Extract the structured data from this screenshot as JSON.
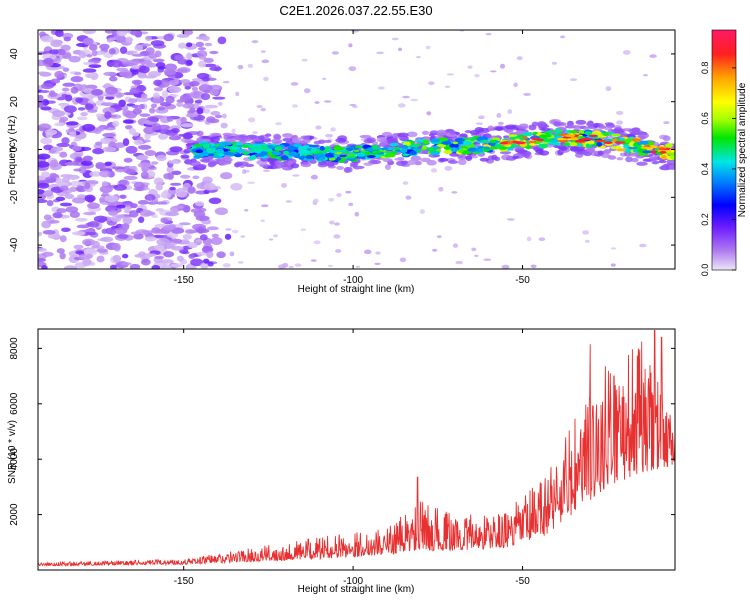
{
  "title": "C2E1.2026.037.22.55.E30",
  "chart_data": [
    {
      "type": "heatmap",
      "xlabel": "Height of straight line (km)",
      "ylabel": "Frequency (Hz)",
      "xlim": [
        -193,
        -5
      ],
      "ylim": [
        -50,
        50
      ],
      "xticks": [
        -150,
        -100,
        -50
      ],
      "yticks": [
        -40,
        -20,
        0,
        20,
        40
      ],
      "colorbar": {
        "label": "Normalized spectral amplitude",
        "range": [
          0,
          0.95
        ],
        "ticks": [
          0.0,
          0.2,
          0.4,
          0.6,
          0.8
        ]
      },
      "ridge": {
        "description_points": [
          {
            "x": -148,
            "y": 0
          },
          {
            "x": -120,
            "y": -1
          },
          {
            "x": -100,
            "y": -2
          },
          {
            "x": -80,
            "y": 1
          },
          {
            "x": -60,
            "y": 2
          },
          {
            "x": -40,
            "y": 5
          },
          {
            "x": -25,
            "y": 4
          },
          {
            "x": -8,
            "y": -1
          }
        ]
      }
    },
    {
      "type": "line",
      "xlabel": "Height of straight line (km)",
      "ylabel": "SNR (10 * v/v)",
      "xlim": [
        -193,
        -5
      ],
      "ylim": [
        0,
        8700
      ],
      "xticks": [
        -150,
        -100,
        -50
      ],
      "yticks": [
        2000,
        4000,
        6000,
        8000
      ],
      "series_color": "#e83030",
      "envelope": [
        {
          "x": -193,
          "base": 150,
          "amp": 120
        },
        {
          "x": -150,
          "base": 200,
          "amp": 200
        },
        {
          "x": -130,
          "base": 300,
          "amp": 500
        },
        {
          "x": -110,
          "base": 400,
          "amp": 800
        },
        {
          "x": -90,
          "base": 550,
          "amp": 1000
        },
        {
          "x": -80,
          "base": 700,
          "amp": 1800
        },
        {
          "x": -70,
          "base": 700,
          "amp": 1300
        },
        {
          "x": -55,
          "base": 800,
          "amp": 1300
        },
        {
          "x": -45,
          "base": 1100,
          "amp": 2200
        },
        {
          "x": -35,
          "base": 2000,
          "amp": 3500
        },
        {
          "x": -25,
          "base": 3000,
          "amp": 4500
        },
        {
          "x": -15,
          "base": 3500,
          "amp": 4800
        },
        {
          "x": -5,
          "base": 3800,
          "amp": 1500
        }
      ],
      "peaks": [
        {
          "x": -81,
          "y": 3350
        },
        {
          "x": -30,
          "y": 8150
        },
        {
          "x": -23,
          "y": 7000
        },
        {
          "x": -11,
          "y": 8650
        },
        {
          "x": -9,
          "y": 8400
        }
      ]
    }
  ]
}
